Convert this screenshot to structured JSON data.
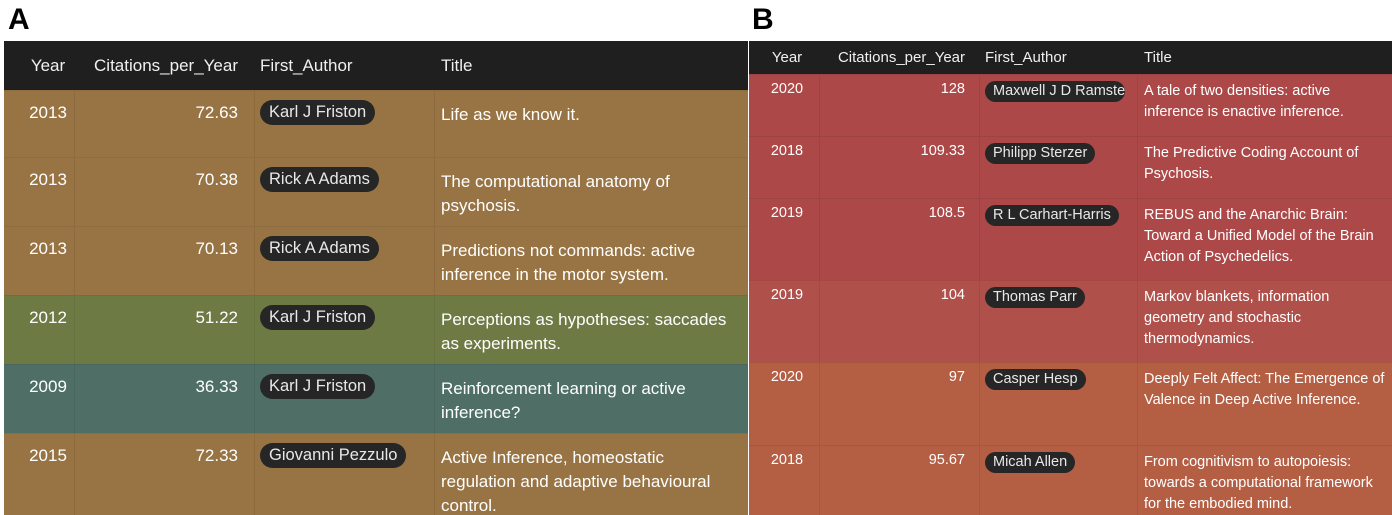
{
  "panel_a": {
    "letter": "A",
    "columns": [
      "Year",
      "Citations_per_Year",
      "First_Author",
      "Title"
    ],
    "rows": [
      {
        "year": "2013",
        "citations": "72.63",
        "author": "Karl J Friston",
        "title": "Life as we know it.",
        "color": "#987444"
      },
      {
        "year": "2013",
        "citations": "70.38",
        "author": "Rick A Adams",
        "title": "The computational anatomy of psychosis.",
        "color": "#987444"
      },
      {
        "year": "2013",
        "citations": "70.13",
        "author": "Rick A Adams",
        "title": "Predictions not commands: active inference in the motor system.",
        "color": "#987444"
      },
      {
        "year": "2012",
        "citations": "51.22",
        "author": "Karl J Friston",
        "title": "Perceptions as hypotheses: saccades as experiments.",
        "color": "#6d7a44"
      },
      {
        "year": "2009",
        "citations": "36.33",
        "author": "Karl J Friston",
        "title": "Reinforcement learning or active inference?",
        "color": "#4e6e66"
      },
      {
        "year": "2015",
        "citations": "72.33",
        "author": "Giovanni Pezzulo",
        "title": "Active Inference, homeostatic regulation and adaptive behavioural control.",
        "color": "#987444"
      }
    ]
  },
  "panel_b": {
    "letter": "B",
    "columns": [
      "Year",
      "Citations_per_Year",
      "First_Author",
      "Title"
    ],
    "rows": [
      {
        "year": "2020",
        "citations": "128",
        "author": "Maxwell J D Ramstead",
        "title": "A tale of two densities: active inference is enactive inference.",
        "color": "#ad4848"
      },
      {
        "year": "2018",
        "citations": "109.33",
        "author": "Philipp Sterzer",
        "title": "The Predictive Coding Account of Psychosis.",
        "color": "#ad4848"
      },
      {
        "year": "2019",
        "citations": "108.5",
        "author": "R L Carhart-Harris",
        "title": "REBUS and the Anarchic Brain: Toward a Unified Model of the Brain Action of Psychedelics.",
        "color": "#ad4848"
      },
      {
        "year": "2019",
        "citations": "104",
        "author": "Thomas Parr",
        "title": "Markov blankets, information geometry and stochastic thermodynamics.",
        "color": "#b0504a"
      },
      {
        "year": "2020",
        "citations": "97",
        "author": "Casper Hesp",
        "title": "Deeply Felt Affect: The Emergence of Valence in Deep Active Inference.",
        "color": "#b45e44"
      },
      {
        "year": "2018",
        "citations": "95.67",
        "author": "Micah Allen",
        "title": "From cognitivism to autopoiesis: towards a computational framework for the embodied mind.",
        "color": "#b45e44"
      }
    ]
  }
}
